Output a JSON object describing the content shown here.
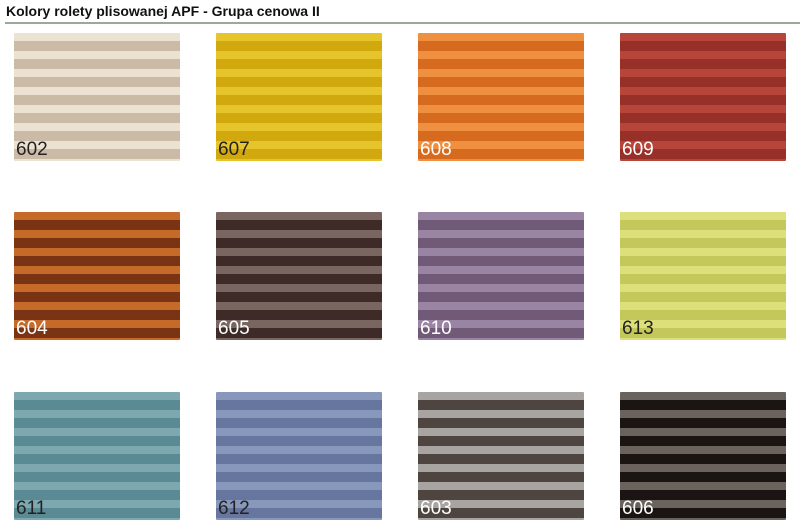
{
  "title": "Kolory rolety plisowanej APF - Grupa cenowa II",
  "swatches": [
    {
      "code": "602",
      "light": "#ece2d2",
      "dark": "#cbbba6",
      "label_color": "#222222"
    },
    {
      "code": "607",
      "light": "#e6c42c",
      "dark": "#d1a90e",
      "label_color": "#222222"
    },
    {
      "code": "608",
      "light": "#ee9040",
      "dark": "#d66a1e",
      "label_color": "#ffffff"
    },
    {
      "code": "609",
      "light": "#b8453a",
      "dark": "#98302a",
      "label_color": "#ffffff"
    },
    {
      "code": "604",
      "light": "#c66a2a",
      "dark": "#7a3414",
      "label_color": "#ffffff"
    },
    {
      "code": "605",
      "light": "#7a6660",
      "dark": "#3e2a26",
      "label_color": "#ffffff"
    },
    {
      "code": "610",
      "light": "#9a84a4",
      "dark": "#705a78",
      "label_color": "#ffffff"
    },
    {
      "code": "613",
      "light": "#dcdf7a",
      "dark": "#c4c85a",
      "label_color": "#222222"
    },
    {
      "code": "611",
      "light": "#7ea8b0",
      "dark": "#5a8a94",
      "label_color": "#222222"
    },
    {
      "code": "612",
      "light": "#8898bc",
      "dark": "#66769e",
      "label_color": "#222222"
    },
    {
      "code": "603",
      "light": "#a8a4a2",
      "dark": "#4e4440",
      "label_color": "#ffffff"
    },
    {
      "code": "606",
      "light": "#6a625c",
      "dark": "#1a1512",
      "label_color": "#ffffff"
    }
  ]
}
